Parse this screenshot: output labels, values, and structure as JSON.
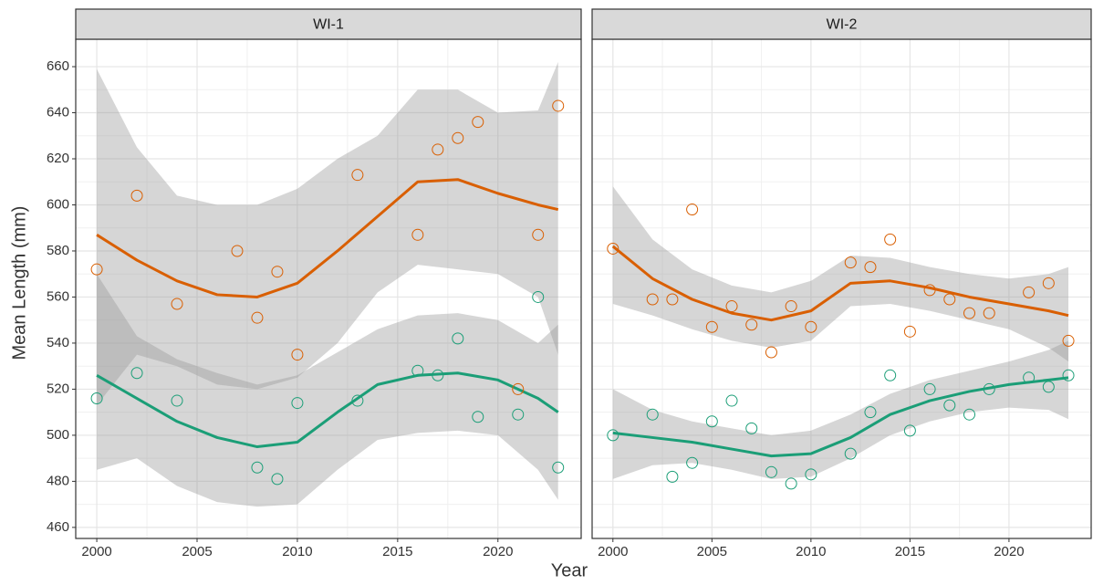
{
  "xlabel": "Year",
  "ylabel": "Mean Length (mm)",
  "chart_data": [
    {
      "type": "scatter",
      "title": "WI-1",
      "xlim": [
        1998.95,
        2024.15
      ],
      "ylim": [
        455.2,
        671.9
      ],
      "xticks": [
        2000,
        2005,
        2010,
        2015,
        2020
      ],
      "yticks": [
        460,
        480,
        500,
        520,
        540,
        560,
        580,
        600,
        620,
        640,
        660
      ],
      "grid": true,
      "series": [
        {
          "color": "#d95f02",
          "x": [
            2000,
            2002,
            2004,
            2007,
            2008,
            2009,
            2010,
            2013,
            2016,
            2017,
            2018,
            2019,
            2021,
            2022,
            2023
          ],
          "values": [
            572,
            604,
            557,
            580,
            551,
            571,
            535,
            613,
            587,
            624,
            629,
            636,
            520,
            587,
            643
          ]
        },
        {
          "color": "#1b9e77",
          "x": [
            2000,
            2002,
            2004,
            2008,
            2009,
            2010,
            2013,
            2016,
            2017,
            2018,
            2019,
            2021,
            2022,
            2023
          ],
          "values": [
            516,
            527,
            515,
            486,
            481,
            514,
            515,
            528,
            526,
            542,
            508,
            509,
            560,
            486
          ]
        }
      ],
      "smooth": [
        {
          "color": "#d95f02",
          "x": [
            2000,
            2002,
            2004,
            2006,
            2008,
            2010,
            2012,
            2014,
            2016,
            2018,
            2020,
            2022,
            2023
          ],
          "values": [
            587,
            576,
            567,
            561,
            560,
            566,
            580,
            595,
            610,
            611,
            605,
            600,
            598
          ],
          "lower": [
            513,
            535,
            530,
            522,
            520,
            525,
            540,
            562,
            574,
            572,
            570,
            560,
            535
          ],
          "upper": [
            659,
            625,
            604,
            600,
            600,
            607,
            620,
            630,
            650,
            650,
            640,
            641,
            662
          ]
        },
        {
          "color": "#1b9e77",
          "x": [
            2000,
            2002,
            2004,
            2006,
            2008,
            2010,
            2012,
            2014,
            2016,
            2018,
            2020,
            2022,
            2023
          ],
          "values": [
            526,
            516,
            506,
            499,
            495,
            497,
            510,
            522,
            526,
            527,
            524,
            516,
            510
          ],
          "lower": [
            485,
            490,
            478,
            471,
            469,
            470,
            485,
            498,
            501,
            502,
            500,
            485,
            472
          ],
          "upper": [
            570,
            543,
            533,
            527,
            522,
            526,
            536,
            546,
            552,
            553,
            550,
            540,
            548
          ]
        }
      ]
    },
    {
      "type": "scatter",
      "title": "WI-2",
      "xlim": [
        1998.95,
        2024.15
      ],
      "ylim": [
        455.2,
        671.9
      ],
      "xticks": [
        2000,
        2005,
        2010,
        2015,
        2020
      ],
      "yticks": [
        460,
        480,
        500,
        520,
        540,
        560,
        580,
        600,
        620,
        640,
        660
      ],
      "grid": true,
      "series": [
        {
          "color": "#d95f02",
          "x": [
            2000,
            2002,
            2003,
            2004,
            2005,
            2006,
            2007,
            2008,
            2009,
            2010,
            2012,
            2013,
            2014,
            2015,
            2016,
            2017,
            2018,
            2019,
            2021,
            2022,
            2023
          ],
          "values": [
            581,
            559,
            559,
            598,
            547,
            556,
            548,
            536,
            556,
            547,
            575,
            573,
            585,
            545,
            563,
            559,
            553,
            553,
            562,
            566,
            541
          ]
        },
        {
          "color": "#1b9e77",
          "x": [
            2000,
            2002,
            2003,
            2004,
            2005,
            2006,
            2007,
            2008,
            2009,
            2010,
            2012,
            2013,
            2014,
            2015,
            2016,
            2017,
            2018,
            2019,
            2021,
            2022,
            2023
          ],
          "values": [
            500,
            509,
            482,
            488,
            506,
            515,
            503,
            484,
            479,
            483,
            492,
            510,
            526,
            502,
            520,
            513,
            509,
            520,
            525,
            521,
            526
          ]
        }
      ],
      "smooth": [
        {
          "color": "#d95f02",
          "x": [
            2000,
            2002,
            2004,
            2006,
            2008,
            2010,
            2012,
            2014,
            2016,
            2018,
            2020,
            2022,
            2023
          ],
          "values": [
            582,
            568,
            559,
            553,
            550,
            554,
            566,
            567,
            564,
            560,
            557,
            554,
            552
          ],
          "lower": [
            557,
            552,
            546,
            541,
            538,
            541,
            556,
            557,
            554,
            550,
            546,
            538,
            532
          ],
          "upper": [
            608,
            585,
            572,
            565,
            562,
            567,
            578,
            577,
            573,
            570,
            568,
            570,
            573
          ]
        },
        {
          "color": "#1b9e77",
          "x": [
            2000,
            2002,
            2004,
            2006,
            2008,
            2010,
            2012,
            2014,
            2016,
            2018,
            2020,
            2022,
            2023
          ],
          "values": [
            501,
            499,
            497,
            494,
            491,
            492,
            499,
            509,
            515,
            519,
            522,
            524,
            525
          ],
          "lower": [
            481,
            487,
            488,
            485,
            481,
            482,
            490,
            500,
            506,
            510,
            512,
            511,
            507
          ],
          "upper": [
            520,
            511,
            506,
            503,
            500,
            502,
            509,
            518,
            524,
            528,
            532,
            537,
            541
          ]
        }
      ]
    }
  ]
}
